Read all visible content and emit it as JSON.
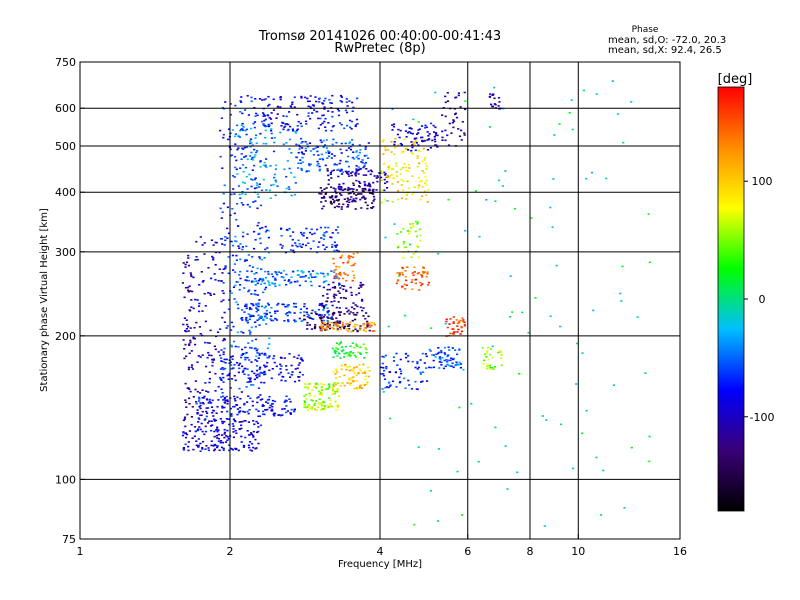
{
  "chart_data": {
    "type": "scatter",
    "title": "Tromsø 20141026 00:40:00-00:41:43",
    "subtitle": "RwPretec (8p)",
    "xlabel": "Frequency [MHz]",
    "ylabel": "Stationary phase Virtual Height [km]",
    "x_scale": "log2",
    "y_scale": "log",
    "xlim": [
      1,
      16
    ],
    "ylim": [
      75,
      750
    ],
    "x_ticks": [
      1,
      2,
      4,
      6,
      8,
      10,
      16
    ],
    "y_ticks": [
      75,
      100,
      200,
      300,
      400,
      500,
      600,
      750
    ],
    "grid": true,
    "phase_info": {
      "title": "Phase",
      "line_o": "mean, sd,O: -72.0, 20.3",
      "line_x": "mean, sd,X:  92.4, 26.5"
    },
    "colorbar": {
      "label": "[deg]",
      "range": [
        -180,
        180
      ],
      "ticks": [
        100,
        0,
        -100
      ],
      "colors": [
        "#000000",
        "#3a0077",
        "#0000ff",
        "#00bfff",
        "#00ff00",
        "#ffff00",
        "#ff8c00",
        "#ff0000"
      ]
    },
    "traces": [
      {
        "f": [
          1.6,
          1.7
        ],
        "h": [
          120,
          300
        ],
        "phase": -110,
        "n": 85
      },
      {
        "f": [
          1.7,
          1.95
        ],
        "h": [
          115,
          330
        ],
        "phase": -95,
        "n": 120
      },
      {
        "f": [
          1.6,
          2.3
        ],
        "h": [
          115,
          135
        ],
        "phase": -90,
        "n": 150
      },
      {
        "f": [
          1.7,
          2.7
        ],
        "h": [
          136,
          150
        ],
        "phase": -80,
        "n": 140
      },
      {
        "f": [
          1.9,
          2.8
        ],
        "h": [
          160,
          185
        ],
        "phase": -85,
        "n": 120
      },
      {
        "f": [
          1.9,
          2.3
        ],
        "h": [
          150,
          640
        ],
        "phase": -70,
        "n": 220
      },
      {
        "f": [
          2.0,
          2.4
        ],
        "h": [
          180,
          340
        ],
        "phase": -55,
        "n": 90
      },
      {
        "f": [
          2.1,
          3.2
        ],
        "h": [
          215,
          235
        ],
        "phase": -60,
        "n": 120
      },
      {
        "f": [
          2.2,
          3.3
        ],
        "h": [
          255,
          275
        ],
        "phase": -45,
        "n": 90
      },
      {
        "f": [
          2.0,
          2.7
        ],
        "h": [
          390,
          560
        ],
        "phase": -40,
        "n": 120
      },
      {
        "f": [
          2.3,
          3.6
        ],
        "h": [
          540,
          640
        ],
        "phase": -80,
        "n": 150
      },
      {
        "f": [
          2.7,
          3.8
        ],
        "h": [
          440,
          520
        ],
        "phase": -60,
        "n": 130
      },
      {
        "f": [
          3.0,
          3.9
        ],
        "h": [
          370,
          410
        ],
        "phase": -130,
        "n": 110
      },
      {
        "f": [
          3.1,
          4.2
        ],
        "h": [
          405,
          450
        ],
        "phase": -110,
        "n": 90
      },
      {
        "f": [
          2.8,
          3.8
        ],
        "h": [
          205,
          225
        ],
        "phase": -130,
        "n": 90
      },
      {
        "f": [
          3.0,
          3.7
        ],
        "h": [
          225,
          260
        ],
        "phase": -115,
        "n": 70
      },
      {
        "f": [
          2.5,
          3.3
        ],
        "h": [
          300,
          340
        ],
        "phase": -70,
        "n": 70
      },
      {
        "f": [
          2.8,
          3.3
        ],
        "h": [
          140,
          160
        ],
        "phase": 60,
        "n": 110
      },
      {
        "f": [
          3.2,
          3.8
        ],
        "h": [
          155,
          175
        ],
        "phase": 100,
        "n": 70
      },
      {
        "f": [
          3.2,
          3.8
        ],
        "h": [
          180,
          195
        ],
        "phase": 30,
        "n": 50
      },
      {
        "f": [
          3.0,
          3.9
        ],
        "h": [
          205,
          215
        ],
        "phase": 130,
        "n": 60
      },
      {
        "f": [
          3.2,
          3.6
        ],
        "h": [
          260,
          300
        ],
        "phase": 140,
        "n": 40
      },
      {
        "f": [
          4.0,
          5.0
        ],
        "h": [
          380,
          520
        ],
        "phase": 90,
        "n": 110
      },
      {
        "f": [
          4.2,
          5.2
        ],
        "h": [
          490,
          560
        ],
        "phase": -90,
        "n": 70
      },
      {
        "f": [
          4.3,
          5.0
        ],
        "h": [
          250,
          280
        ],
        "phase": 150,
        "n": 50
      },
      {
        "f": [
          4.3,
          4.8
        ],
        "h": [
          290,
          350
        ],
        "phase": 50,
        "n": 35
      },
      {
        "f": [
          4.0,
          5.0
        ],
        "h": [
          155,
          185
        ],
        "phase": -70,
        "n": 70
      },
      {
        "f": [
          5.0,
          5.8
        ],
        "h": [
          170,
          190
        ],
        "phase": -60,
        "n": 60
      },
      {
        "f": [
          5.4,
          5.9
        ],
        "h": [
          200,
          220
        ],
        "phase": 160,
        "n": 35
      },
      {
        "f": [
          5.3,
          5.9
        ],
        "h": [
          500,
          650
        ],
        "phase": -110,
        "n": 40
      },
      {
        "f": [
          6.4,
          7.0
        ],
        "h": [
          170,
          190
        ],
        "phase": 60,
        "n": 30
      },
      {
        "f": [
          6.6,
          7.0
        ],
        "h": [
          600,
          650
        ],
        "phase": -100,
        "n": 20
      },
      {
        "f": [
          4.0,
          14.0
        ],
        "h": [
          80,
          700
        ],
        "phase": 0,
        "n": 100
      }
    ]
  }
}
